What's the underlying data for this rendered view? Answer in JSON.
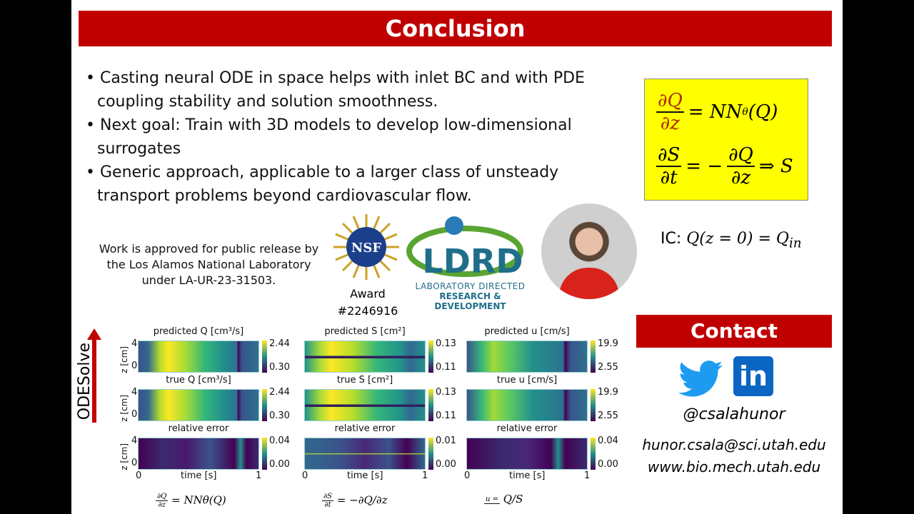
{
  "title": "Conclusion",
  "bullets": [
    "Casting neural ODE in space helps with inlet BC and with PDE coupling stability and solution smoothness.",
    "Next goal: Train with 3D models to develop low-dimensional surrogates",
    "Generic approach, applicable to a larger class of unsteady transport problems beyond cardiovascular flow."
  ],
  "equations": {
    "eq1_num": "∂Q",
    "eq1_den": "∂z",
    "eq1_rhs": "= NN",
    "eq1_sub": "θ",
    "eq1_tail": "(Q)",
    "eq2_num": "∂S",
    "eq2_den": "∂t",
    "eq2_mid": "= −",
    "eq2_num2": "∂Q",
    "eq2_den2": "∂z",
    "eq2_tail": "⇒ S",
    "ic_label": "IC:",
    "ic_expr": "Q(z = 0) = Q",
    "ic_sub": "in"
  },
  "release": "Work is approved for public release by the Los Alamos National Laboratory under LA-UR-23-31503.",
  "nsf": {
    "logo": "NSF",
    "award": "Award",
    "number": "#2246916"
  },
  "ldrd": {
    "logo": "LDRD",
    "line1": "LABORATORY DIRECTED",
    "line2": "RESEARCH & DEVELOPMENT"
  },
  "contact": {
    "title": "Contact",
    "handle": "@csalahunor",
    "email": "hunor.csala@sci.utah.edu",
    "web": "www.bio.mech.utah.edu",
    "twitter_color": "#1d9bf0",
    "linkedin_color": "#0a66c2"
  },
  "figure": {
    "arrow_label": "ODESolve",
    "ylabel": "z [cm]",
    "xlabel": "time [s]",
    "yticks": [
      "4",
      "0"
    ],
    "xticks": [
      "0",
      "1"
    ],
    "columns": [
      {
        "predicted": "predicted Q [cm³/s]",
        "true": "true Q [cm³/s]",
        "error": "relative error",
        "cmax": "2.44",
        "cmin": "0.30",
        "emax": "0.04",
        "emin": "0.00",
        "eq_lhs_num": "∂Q",
        "eq_lhs_den": "∂z",
        "eq_rhs": "= NNθ(Q)"
      },
      {
        "predicted": "predicted S [cm²]",
        "true": "true S [cm²]",
        "error": "relative error",
        "cmax": "0.13",
        "cmin": "0.11",
        "emax": "0.01",
        "emin": "0.00",
        "eq_lhs_num": "∂S",
        "eq_lhs_den": "∂t",
        "eq_rhs": "= −∂Q/∂z"
      },
      {
        "predicted": "predicted u [cm/s]",
        "true": "true u [cm/s]",
        "error": "relative error",
        "cmax": "19.9",
        "cmin": "2.55",
        "emax": "0.04",
        "emin": "0.00",
        "eq_lhs_num": "u =",
        "eq_lhs_den": "",
        "eq_rhs": "Q/S"
      }
    ]
  },
  "colors": {
    "title_bar": "#c00000",
    "equation_box": "#ffff00",
    "arrow": "#c00000"
  }
}
